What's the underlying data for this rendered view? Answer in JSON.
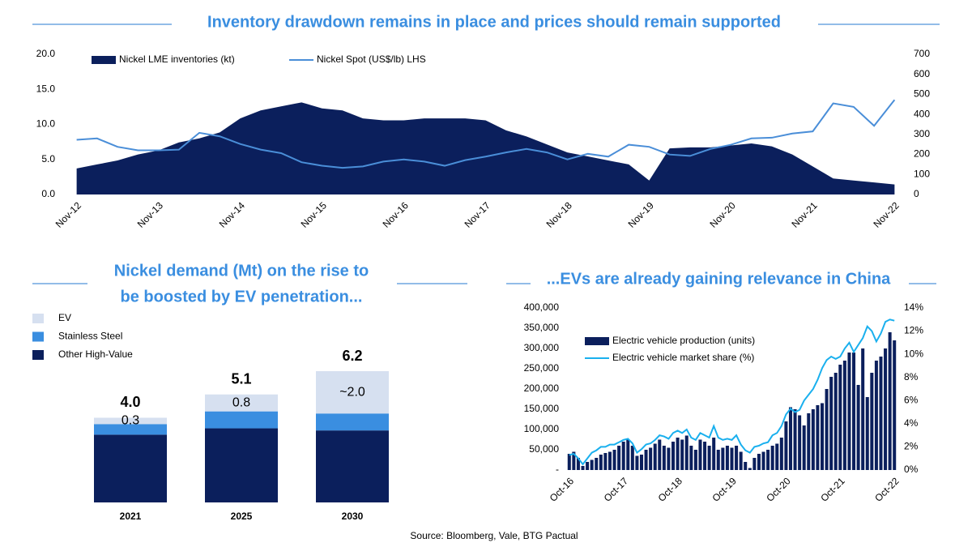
{
  "chart_data": [
    {
      "type": "combo",
      "title": "Inventory drawdown remains in place and prices should remain supported",
      "categories": [
        "Nov-12",
        null,
        null,
        null,
        "Nov-13",
        null,
        null,
        null,
        "Nov-14",
        null,
        null,
        null,
        "Nov-15",
        null,
        null,
        null,
        "Nov-16",
        null,
        null,
        null,
        "Nov-17",
        null,
        null,
        null,
        "Nov-18",
        null,
        null,
        null,
        "Nov-19",
        null,
        null,
        null,
        "Nov-20",
        null,
        null,
        null,
        "Nov-21",
        null,
        null,
        null,
        "Nov-22"
      ],
      "series": [
        {
          "name": "Nickel LME inventories (kt)",
          "type": "area",
          "axis": "y2",
          "color": "#0b1f5c",
          "values": [
            130,
            150,
            170,
            200,
            220,
            260,
            280,
            310,
            380,
            420,
            440,
            460,
            430,
            420,
            380,
            370,
            370,
            380,
            380,
            380,
            370,
            320,
            290,
            250,
            210,
            190,
            170,
            150,
            70,
            230,
            235,
            235,
            245,
            255,
            240,
            200,
            140,
            80,
            70,
            60,
            50
          ]
        },
        {
          "name": "Nickel Spot (US$/lb) LHS",
          "type": "line",
          "axis": "y",
          "color": "#4a8ed8",
          "values": [
            7.8,
            8.0,
            6.8,
            6.3,
            6.3,
            6.4,
            8.8,
            8.3,
            7.2,
            6.4,
            5.9,
            4.6,
            4.1,
            3.8,
            4.0,
            4.7,
            5.0,
            4.7,
            4.1,
            4.9,
            5.4,
            6.0,
            6.5,
            6.0,
            5.0,
            5.8,
            5.4,
            7.1,
            6.8,
            5.7,
            5.5,
            6.5,
            7.1,
            8.0,
            8.1,
            8.7,
            9.0,
            13.0,
            12.5,
            9.8,
            13.5
          ]
        }
      ],
      "ylim": [
        0,
        20
      ],
      "yticks": [
        {
          "value": 0,
          "label": "0.0"
        },
        {
          "value": 5,
          "label": "5.0"
        },
        {
          "value": 10,
          "label": "10.0"
        },
        {
          "value": 15,
          "label": "15.0"
        },
        {
          "value": 20,
          "label": "20.0"
        }
      ],
      "y2lim": [
        0,
        700
      ],
      "y2ticks": [
        0,
        100,
        200,
        300,
        400,
        500,
        600,
        700
      ],
      "grid": false
    },
    {
      "type": "bar",
      "stacked": true,
      "title": [
        "Nickel demand (Mt) on the rise to",
        "be boosted by EV penetration..."
      ],
      "categories": [
        "2021",
        "2025",
        "2030"
      ],
      "series": [
        {
          "name": "Other High-Value",
          "color": "#0b1f5c",
          "values": [
            3.2,
            3.5,
            3.4
          ]
        },
        {
          "name": "Stainless Steel",
          "color": "#3a8ee0",
          "values": [
            0.5,
            0.8,
            0.8
          ]
        },
        {
          "name": "EV",
          "color": "#d6e0f0",
          "values": [
            0.3,
            0.8,
            2.0
          ],
          "value_labels": [
            "0.3",
            "0.8",
            "~2.0"
          ]
        }
      ],
      "total_labels": [
        "4.0",
        "5.1",
        "6.2"
      ]
    },
    {
      "type": "combo",
      "title": "...EVs are already gaining relevance in China",
      "categories": [
        "Oct-16",
        null,
        null,
        null,
        null,
        null,
        null,
        null,
        null,
        null,
        null,
        null,
        "Oct-17",
        null,
        null,
        null,
        null,
        null,
        null,
        null,
        null,
        null,
        null,
        null,
        "Oct-18",
        null,
        null,
        null,
        null,
        null,
        null,
        null,
        null,
        null,
        null,
        null,
        "Oct-19",
        null,
        null,
        null,
        null,
        null,
        null,
        null,
        null,
        null,
        null,
        null,
        "Oct-20",
        null,
        null,
        null,
        null,
        null,
        null,
        null,
        null,
        null,
        null,
        null,
        "Oct-21",
        null,
        null,
        null,
        null,
        null,
        null,
        null,
        null,
        null,
        null,
        null,
        "Oct-22"
      ],
      "series": [
        {
          "name": "Electric vehicle production (units)",
          "type": "bar",
          "axis": "y",
          "color": "#0b1f5c",
          "values": [
            40000,
            45000,
            30000,
            10000,
            20000,
            25000,
            30000,
            38000,
            42000,
            45000,
            50000,
            60000,
            70000,
            75000,
            60000,
            35000,
            38000,
            50000,
            55000,
            65000,
            75000,
            60000,
            55000,
            70000,
            80000,
            75000,
            85000,
            60000,
            50000,
            75000,
            70000,
            60000,
            80000,
            50000,
            55000,
            60000,
            55000,
            60000,
            45000,
            20000,
            5000,
            30000,
            40000,
            45000,
            50000,
            60000,
            65000,
            80000,
            120000,
            155000,
            150000,
            135000,
            110000,
            140000,
            150000,
            160000,
            165000,
            200000,
            230000,
            240000,
            260000,
            270000,
            290000,
            290000,
            210000,
            300000,
            180000,
            240000,
            270000,
            280000,
            300000,
            340000,
            320000
          ]
        },
        {
          "name": "Electric vehicle market share (%)",
          "type": "line",
          "axis": "y2",
          "color": "#1ab0ee",
          "values": [
            1.3,
            1.4,
            1.0,
            0.5,
            1.0,
            1.5,
            1.7,
            2.0,
            2.0,
            2.2,
            2.2,
            2.4,
            2.6,
            2.7,
            2.3,
            1.5,
            1.8,
            2.2,
            2.3,
            2.6,
            3.0,
            2.9,
            2.7,
            3.2,
            3.4,
            3.2,
            3.5,
            2.8,
            2.6,
            3.2,
            3.0,
            2.8,
            3.8,
            2.8,
            2.6,
            2.7,
            2.6,
            3.0,
            2.2,
            1.7,
            1.5,
            2.0,
            2.1,
            2.3,
            2.4,
            3.0,
            3.2,
            3.8,
            4.8,
            5.3,
            5.0,
            5.2,
            6.0,
            6.5,
            7.0,
            7.8,
            8.8,
            9.5,
            9.8,
            9.6,
            9.8,
            10.5,
            11.0,
            10.2,
            10.8,
            11.4,
            12.4,
            12.0,
            11.1,
            11.8,
            12.8,
            13.0,
            12.9
          ]
        }
      ],
      "ylim": [
        0,
        400000
      ],
      "yticks": [
        {
          "value": 0,
          "label": "-"
        },
        {
          "value": 50000,
          "label": "50,000"
        },
        {
          "value": 100000,
          "label": "100,000"
        },
        {
          "value": 150000,
          "label": "150,000"
        },
        {
          "value": 200000,
          "label": "200,000"
        },
        {
          "value": 250000,
          "label": "250,000"
        },
        {
          "value": 300000,
          "label": "300,000"
        },
        {
          "value": 350000,
          "label": "350,000"
        },
        {
          "value": 400000,
          "label": "400,000"
        }
      ],
      "y2lim": [
        0,
        14
      ],
      "y2ticks": [
        {
          "value": 0,
          "label": "0%"
        },
        {
          "value": 2,
          "label": "2%"
        },
        {
          "value": 4,
          "label": "4%"
        },
        {
          "value": 6,
          "label": "6%"
        },
        {
          "value": 8,
          "label": "8%"
        },
        {
          "value": 10,
          "label": "10%"
        },
        {
          "value": 12,
          "label": "12%"
        },
        {
          "value": 14,
          "label": "14%"
        }
      ],
      "grid": false
    }
  ],
  "source": "Source: Bloomberg, Vale, BTG Pactual"
}
